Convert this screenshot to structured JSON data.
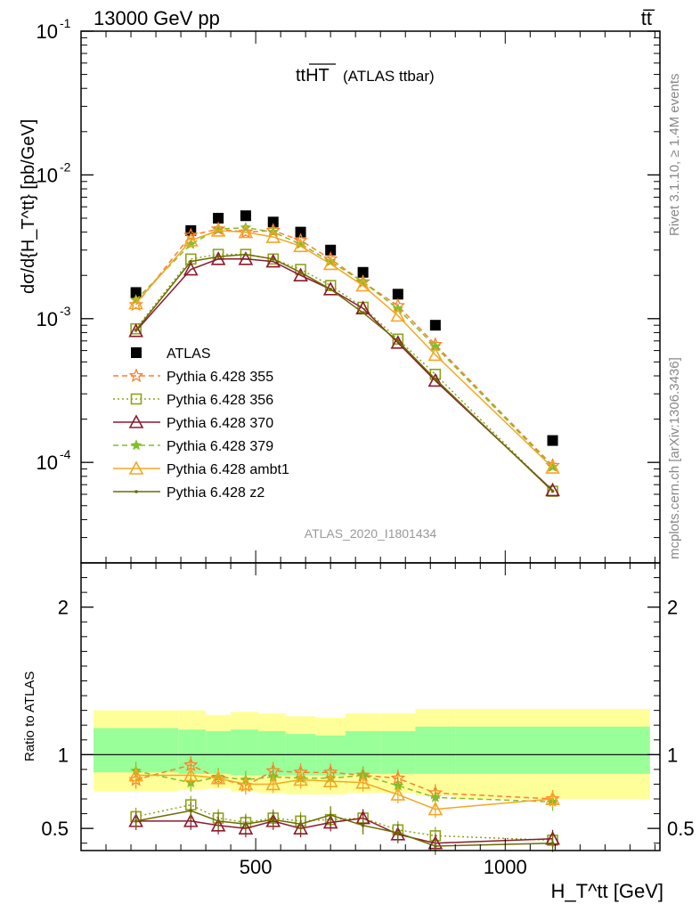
{
  "header": {
    "left": "13000 GeV pp",
    "right": "tt̅"
  },
  "title": "ttHT (ATLAS ttbar)",
  "title_main": "ttHT",
  "title_sub": "(ATLAS ttbar)",
  "analysis_id": "ATLAS_2020_I1801434",
  "side_notes": {
    "rivet": "Rivet 3.1.10, ≥ 1.4M events",
    "mcplots": "mcplots.cern.ch [arXiv:1306.3436]"
  },
  "ylabel_top": "dσ/d{H_T^tt} [pb/GeV]",
  "ylabel_bottom": "Ratio to ATLAS",
  "xlabel": "H_T^tt [GeV]",
  "colors": {
    "atlas": "#000000",
    "p355": "#ff7f2a",
    "p356": "#8ea31a",
    "p370": "#8b1a2e",
    "p379": "#7fbf2a",
    "ambt1": "#f5a623",
    "z2": "#6b6b00",
    "band_outer": "#ffff99",
    "band_inner": "#99ff99"
  },
  "chart_data": [
    {
      "type": "scatter",
      "panel": "main",
      "yscale": "log",
      "xlim": [
        150,
        1310
      ],
      "ylim": [
        2e-05,
        0.1
      ],
      "yticks": [
        "10^-4",
        "10^-3",
        "10^-2",
        "10^-1"
      ],
      "xticks": [
        500,
        1000
      ],
      "x": [
        260,
        370,
        425,
        480,
        535,
        590,
        650,
        715,
        785,
        860,
        1095
      ],
      "series": [
        {
          "name": "ATLAS",
          "marker": "square",
          "line": "none",
          "values": [
            0.00152,
            0.0041,
            0.005,
            0.0052,
            0.0047,
            0.004,
            0.003,
            0.0021,
            0.00148,
            0.0009,
            0.000142
          ]
        },
        {
          "name": "Pythia 6.428 355",
          "marker": "star",
          "line": "dashed",
          "values": [
            0.00125,
            0.0038,
            0.0042,
            0.004,
            0.0041,
            0.0035,
            0.0026,
            0.0018,
            0.00123,
            0.00066,
            9.5e-05
          ]
        },
        {
          "name": "Pythia 6.428 356",
          "marker": "open-square",
          "line": "dotted",
          "values": [
            0.00085,
            0.0026,
            0.0028,
            0.0028,
            0.0026,
            0.0022,
            0.0017,
            0.0012,
            0.00072,
            0.00041,
            6.3e-05
          ]
        },
        {
          "name": "Pythia 6.428 370",
          "marker": "open-triangle",
          "line": "solid",
          "values": [
            0.00082,
            0.0022,
            0.0026,
            0.0026,
            0.0025,
            0.002,
            0.0016,
            0.00118,
            0.00068,
            0.00037,
            6.4e-05
          ]
        },
        {
          "name": "Pythia 6.428 379",
          "marker": "star-small",
          "line": "dashed",
          "values": [
            0.00135,
            0.0033,
            0.0042,
            0.0043,
            0.004,
            0.0033,
            0.0025,
            0.0018,
            0.00117,
            0.00064,
            9.3e-05
          ]
        },
        {
          "name": "Pythia 6.428 ambt1",
          "marker": "open-triangle",
          "line": "solid",
          "values": [
            0.00128,
            0.0035,
            0.0041,
            0.004,
            0.0037,
            0.0032,
            0.0024,
            0.0017,
            0.00105,
            0.00056,
            9.2e-05
          ]
        },
        {
          "name": "Pythia 6.428 z2",
          "marker": "dot",
          "line": "solid",
          "values": [
            0.00083,
            0.0025,
            0.0027,
            0.0028,
            0.0026,
            0.0021,
            0.0016,
            0.0011,
            0.0007,
            0.00038,
            6.3e-05
          ]
        }
      ]
    },
    {
      "type": "line",
      "panel": "ratio",
      "xlim": [
        150,
        1310
      ],
      "ylim": [
        0.35,
        2.3
      ],
      "yticks": [
        0.5,
        1,
        2
      ],
      "xticks": [
        500,
        1000
      ],
      "bins": [
        {
          "lo": 175,
          "hi": 345,
          "inner": [
            0.88,
            1.18
          ],
          "outer": [
            0.75,
            1.3
          ]
        },
        {
          "lo": 345,
          "hi": 400,
          "inner": [
            0.87,
            1.17
          ],
          "outer": [
            0.76,
            1.3
          ]
        },
        {
          "lo": 400,
          "hi": 450,
          "inner": [
            0.87,
            1.16
          ],
          "outer": [
            0.77,
            1.27
          ]
        },
        {
          "lo": 450,
          "hi": 505,
          "inner": [
            0.86,
            1.17
          ],
          "outer": [
            0.75,
            1.29
          ]
        },
        {
          "lo": 505,
          "hi": 560,
          "inner": [
            0.86,
            1.16
          ],
          "outer": [
            0.74,
            1.28
          ]
        },
        {
          "lo": 560,
          "hi": 620,
          "inner": [
            0.86,
            1.14
          ],
          "outer": [
            0.73,
            1.26
          ]
        },
        {
          "lo": 620,
          "hi": 680,
          "inner": [
            0.86,
            1.13
          ],
          "outer": [
            0.73,
            1.25
          ]
        },
        {
          "lo": 680,
          "hi": 750,
          "inner": [
            0.87,
            1.16
          ],
          "outer": [
            0.74,
            1.28
          ]
        },
        {
          "lo": 750,
          "hi": 820,
          "inner": [
            0.87,
            1.16
          ],
          "outer": [
            0.74,
            1.28
          ]
        },
        {
          "lo": 820,
          "hi": 900,
          "inner": [
            0.87,
            1.19
          ],
          "outer": [
            0.72,
            1.31
          ]
        },
        {
          "lo": 900,
          "hi": 1290,
          "inner": [
            0.87,
            1.19
          ],
          "outer": [
            0.7,
            1.31
          ]
        }
      ],
      "x": [
        260,
        370,
        425,
        480,
        535,
        590,
        650,
        715,
        785,
        860,
        1095
      ],
      "series": [
        {
          "name": "Pythia 6.428 355",
          "values": [
            0.83,
            0.93,
            0.84,
            0.79,
            0.89,
            0.88,
            0.88,
            0.86,
            0.84,
            0.74,
            0.7
          ]
        },
        {
          "name": "Pythia 6.428 356",
          "values": [
            0.58,
            0.66,
            0.57,
            0.54,
            0.57,
            0.55,
            0.56,
            0.57,
            0.49,
            0.45,
            0.42
          ]
        },
        {
          "name": "Pythia 6.428 370",
          "values": [
            0.55,
            0.55,
            0.52,
            0.5,
            0.55,
            0.5,
            0.54,
            0.57,
            0.46,
            0.4,
            0.43
          ]
        },
        {
          "name": "Pythia 6.428 379",
          "values": [
            0.89,
            0.81,
            0.85,
            0.83,
            0.85,
            0.84,
            0.84,
            0.86,
            0.79,
            0.71,
            0.68
          ]
        },
        {
          "name": "Pythia 6.428 ambt1",
          "values": [
            0.86,
            0.86,
            0.84,
            0.8,
            0.8,
            0.83,
            0.82,
            0.81,
            0.73,
            0.63,
            0.7
          ]
        },
        {
          "name": "Pythia 6.428 z2",
          "values": [
            0.55,
            0.62,
            0.55,
            0.53,
            0.56,
            0.53,
            0.59,
            0.52,
            0.47,
            0.38,
            0.4
          ]
        }
      ]
    }
  ]
}
